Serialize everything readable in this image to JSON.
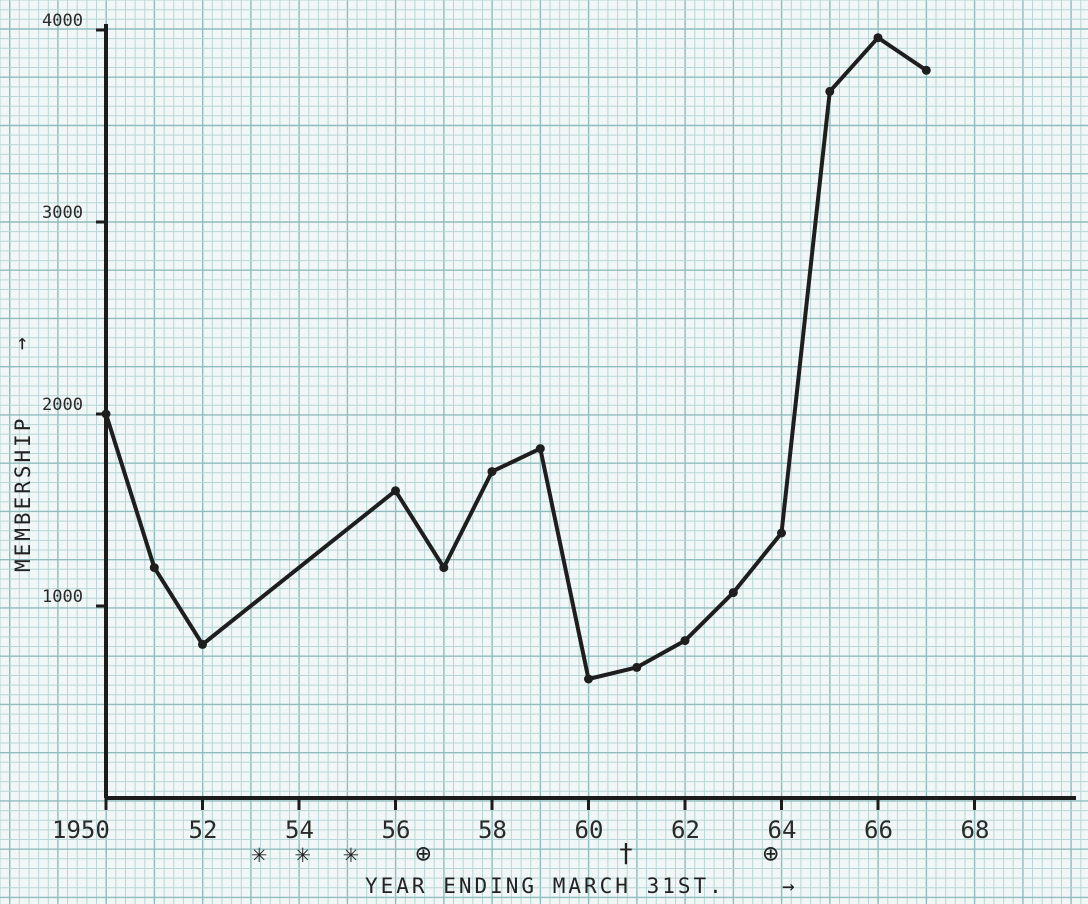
{
  "chart_data": {
    "type": "line",
    "title": "",
    "xlabel": "YEAR ENDING MARCH 31ST.",
    "ylabel": "MEMBERSHIP",
    "x_arrow": "→",
    "y_arrow": "→",
    "xlim": [
      1950,
      1970
    ],
    "ylim": [
      0,
      4000
    ],
    "x_ticks": [
      {
        "value": 1950,
        "label": "1950"
      },
      {
        "value": 1952,
        "label": "52"
      },
      {
        "value": 1954,
        "label": "54"
      },
      {
        "value": 1956,
        "label": "56"
      },
      {
        "value": 1958,
        "label": "58"
      },
      {
        "value": 1960,
        "label": "60"
      },
      {
        "value": 1962,
        "label": "62"
      },
      {
        "value": 1964,
        "label": "64"
      },
      {
        "value": 1966,
        "label": "66"
      },
      {
        "value": 1968,
        "label": "68"
      }
    ],
    "y_ticks": [
      {
        "value": 1000,
        "label": "1000"
      },
      {
        "value": 2000,
        "label": "2000"
      },
      {
        "value": 3000,
        "label": "3000"
      },
      {
        "value": 4000,
        "label": "4000"
      }
    ],
    "x": [
      1950,
      1951,
      1952,
      1956,
      1957,
      1958,
      1959,
      1960,
      1961,
      1962,
      1963,
      1964,
      1965,
      1966,
      1967
    ],
    "y": [
      2000,
      1200,
      800,
      1600,
      1200,
      1700,
      1820,
      620,
      680,
      820,
      1070,
      1380,
      3680,
      3960,
      3790
    ],
    "year_markers": [
      {
        "x": 1953.2,
        "symbol": "✳"
      },
      {
        "x": 1954.1,
        "symbol": "✳"
      },
      {
        "x": 1955.1,
        "symbol": "✳"
      },
      {
        "x": 1956.6,
        "symbol": "⊕"
      },
      {
        "x": 1960.8,
        "symbol": "†"
      },
      {
        "x": 1963.8,
        "symbol": "⊕"
      }
    ],
    "grid": true
  }
}
